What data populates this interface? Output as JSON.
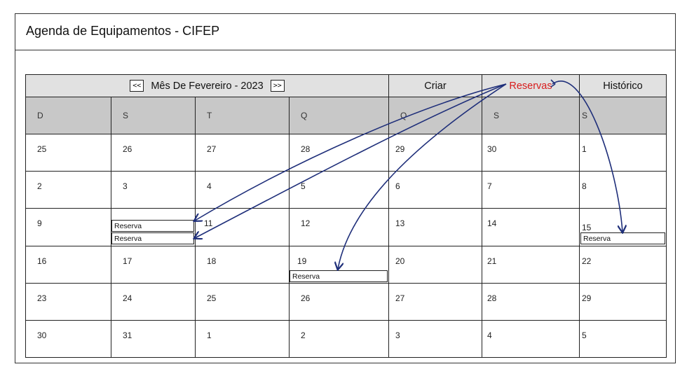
{
  "app": {
    "title": "Agenda de Equipamentos - CIFEP"
  },
  "header": {
    "prev_label": "<<",
    "next_label": ">>",
    "month_label": "Mês De Fevereiro - 2023",
    "tabs": [
      "Criar",
      "Reservas",
      "Histórico"
    ]
  },
  "weekdays": [
    "D",
    "S",
    "T",
    "Q",
    "Q",
    "S",
    "S"
  ],
  "weeks": [
    [
      "25",
      "26",
      "27",
      "28",
      "29",
      "30",
      "1"
    ],
    [
      "2",
      "3",
      "4",
      "5",
      "6",
      "7",
      "8"
    ],
    [
      "9",
      "",
      "11",
      "12",
      "13",
      "14",
      "15"
    ],
    [
      "16",
      "17",
      "18",
      "19",
      "20",
      "21",
      "22"
    ],
    [
      "23",
      "24",
      "25",
      "26",
      "27",
      "28",
      "29"
    ],
    [
      "30",
      "31",
      "1",
      "2",
      "3",
      "4",
      "5"
    ]
  ],
  "reservations": {
    "r1": "Reserva",
    "r2": "Reserva",
    "r3": "Reserva",
    "r4": "Reserva"
  },
  "colors": {
    "accent": "#d81c1c",
    "arrow": "#1f2f7a",
    "header_bg": "#e1e1e1",
    "weekday_bg": "#c8c8c8"
  }
}
